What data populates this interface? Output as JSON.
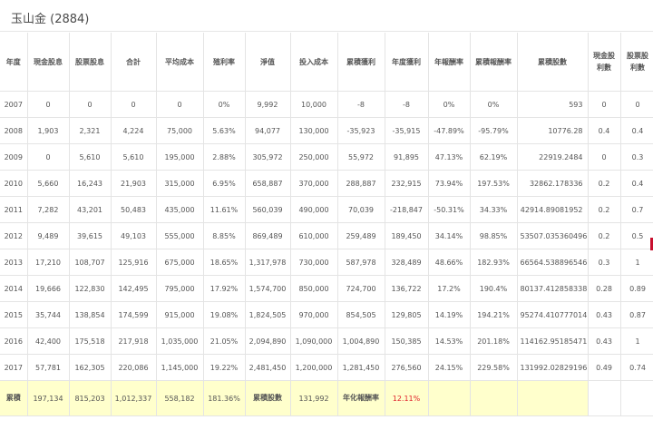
{
  "title": "玉山金 (2884)",
  "headers": [
    "年度",
    "現金股息",
    "股票股息",
    "合計",
    "平均成本",
    "殖利率",
    "淨值",
    "投入成本",
    "累積獲利",
    "年度獲利",
    "年報酬率",
    "累積報酬率",
    "累積股數",
    "現金股利數",
    "股票股利數"
  ],
  "rows": [
    [
      "2007",
      "0",
      "0",
      "0",
      "0",
      "0%",
      "9,992",
      "10,000",
      "-8",
      "-8",
      "0%",
      "0%",
      "593",
      "0",
      "0"
    ],
    [
      "2008",
      "1,903",
      "2,321",
      "4,224",
      "75,000",
      "5.63%",
      "94,077",
      "130,000",
      "-35,923",
      "-35,915",
      "-47.89%",
      "-95.79%",
      "10776.28",
      "0.4",
      "0.4"
    ],
    [
      "2009",
      "0",
      "5,610",
      "5,610",
      "195,000",
      "2.88%",
      "305,972",
      "250,000",
      "55,972",
      "91,895",
      "47.13%",
      "62.19%",
      "22919.2484",
      "0",
      "0.3"
    ],
    [
      "2010",
      "5,660",
      "16,243",
      "21,903",
      "315,000",
      "6.95%",
      "658,887",
      "370,000",
      "288,887",
      "232,915",
      "73.94%",
      "197.53%",
      "32862.178336",
      "0.2",
      "0.4"
    ],
    [
      "2011",
      "7,282",
      "43,201",
      "50,483",
      "435,000",
      "11.61%",
      "560,039",
      "490,000",
      "70,039",
      "-218,847",
      "-50.31%",
      "34.33%",
      "42914.89081952",
      "0.2",
      "0.7"
    ],
    [
      "2012",
      "9,489",
      "39,615",
      "49,103",
      "555,000",
      "8.85%",
      "869,489",
      "610,000",
      "259,489",
      "189,450",
      "34.14%",
      "98.85%",
      "53507.035360496",
      "0.2",
      "0.5"
    ],
    [
      "2013",
      "17,210",
      "108,707",
      "125,916",
      "675,000",
      "18.65%",
      "1,317,978",
      "730,000",
      "587,978",
      "328,489",
      "48.66%",
      "182.93%",
      "66564.538896546",
      "0.3",
      "1"
    ],
    [
      "2014",
      "19,666",
      "122,830",
      "142,495",
      "795,000",
      "17.92%",
      "1,574,700",
      "850,000",
      "724,700",
      "136,722",
      "17.2%",
      "190.4%",
      "80137.412858338",
      "0.28",
      "0.89"
    ],
    [
      "2015",
      "35,744",
      "138,854",
      "174,599",
      "915,000",
      "19.08%",
      "1,824,505",
      "970,000",
      "854,505",
      "129,805",
      "14.19%",
      "194.21%",
      "95274.410777014",
      "0.43",
      "0.87"
    ],
    [
      "2016",
      "42,400",
      "175,518",
      "217,918",
      "1,035,000",
      "21.05%",
      "2,094,890",
      "1,090,000",
      "1,004,890",
      "150,385",
      "14.53%",
      "201.18%",
      "114162.95185471",
      "0.43",
      "1"
    ],
    [
      "2017",
      "57,781",
      "162,305",
      "220,086",
      "1,145,000",
      "19.22%",
      "2,481,450",
      "1,200,000",
      "1,281,450",
      "276,560",
      "24.15%",
      "229.58%",
      "131992.02829196",
      "0.49",
      "0.74"
    ]
  ],
  "total": {
    "label": "累積",
    "cash": "197,134",
    "stock": "815,203",
    "sum": "1,012,337",
    "avg_cost": "558,182",
    "yield": "181.36%",
    "shares_label": "累積股數",
    "shares": "131,992",
    "annual_label": "年化報酬率",
    "annual": "12.11%"
  }
}
